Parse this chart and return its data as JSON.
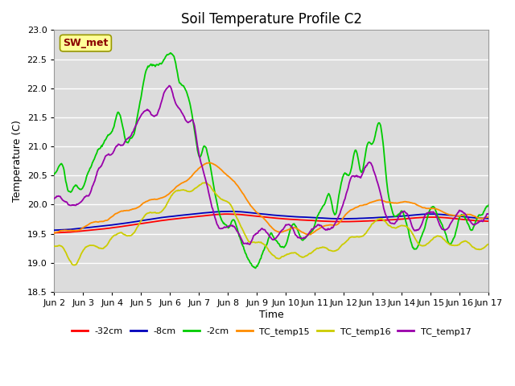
{
  "title": "Soil Temperature Profile C2",
  "xlabel": "Time",
  "ylabel": "Temperature (C)",
  "ylim": [
    18.5,
    23.0
  ],
  "yticks": [
    18.5,
    19.0,
    19.5,
    20.0,
    20.5,
    21.0,
    21.5,
    22.0,
    22.5,
    23.0
  ],
  "annotation": "SW_met",
  "annotation_color": "#8B0000",
  "annotation_bg": "#FFFF99",
  "plot_bg": "#DCDCDC",
  "legend_entries": [
    "-32cm",
    "-8cm",
    "-2cm",
    "TC_temp15",
    "TC_temp16",
    "TC_temp17"
  ],
  "line_colors": [
    "#FF0000",
    "#0000BB",
    "#00CC00",
    "#FF8C00",
    "#CCCC00",
    "#9900AA"
  ],
  "grid_color": "#FFFFFF",
  "title_fontsize": 12
}
